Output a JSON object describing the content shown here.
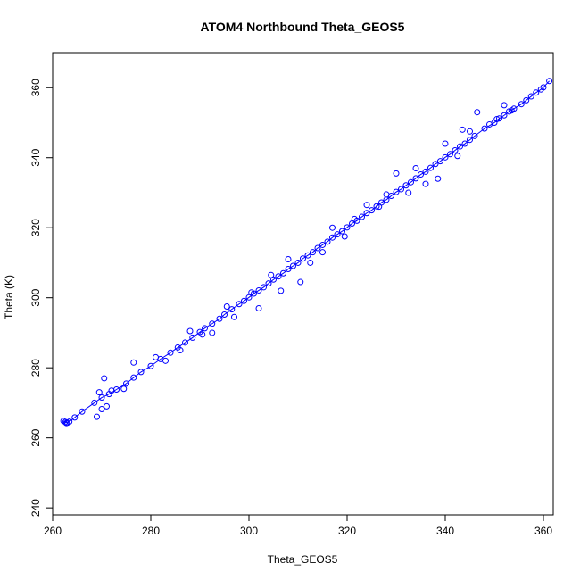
{
  "chart_data": {
    "type": "scatter",
    "title": "ATOM4 Northbound Theta_GEOS5",
    "xlabel": "Theta_GEOS5",
    "ylabel": "Theta (K)",
    "xlim": [
      260,
      362
    ],
    "ylim": [
      238,
      370
    ],
    "xticks": [
      260,
      280,
      300,
      320,
      340,
      360
    ],
    "yticks": [
      240,
      260,
      280,
      300,
      320,
      340,
      360
    ],
    "grid": false,
    "legend": "none",
    "series": [
      {
        "color": "#0000ff",
        "marker": "open-circle",
        "connected": true,
        "x": [
          262.2,
          262.6,
          263.0,
          262.8,
          263.4,
          264.5,
          266.0,
          268.5,
          270.0,
          271.5,
          273.0,
          275.0,
          276.5,
          278.0,
          280.0,
          282.0,
          284.0,
          285.5,
          287.0,
          288.5,
          290.0,
          291.0,
          292.5,
          294.0,
          295.0,
          296.5,
          298.0,
          299.0,
          300.0,
          301.0,
          302.0,
          303.0,
          304.0,
          305.0,
          306.0,
          307.0,
          308.0,
          309.0,
          310.0,
          311.0,
          312.0,
          313.0,
          314.0,
          315.0,
          316.0,
          317.0,
          318.0,
          319.0,
          320.0,
          321.0,
          322.0,
          323.0,
          324.0,
          325.0,
          326.0,
          327.0,
          328.0,
          329.0,
          330.0,
          331.0,
          332.0,
          333.0,
          334.0,
          335.0,
          336.0,
          337.0,
          338.0,
          339.0,
          340.0,
          341.0,
          342.0,
          343.0,
          344.0,
          345.0,
          346.0,
          348.0,
          350.0,
          351.0,
          352.0,
          353.0,
          354.0,
          355.5,
          356.5,
          357.5,
          358.5,
          359.5,
          360.0,
          361.2
        ],
        "y": [
          264.8,
          264.5,
          264.3,
          264.2,
          264.6,
          265.8,
          267.5,
          270.0,
          271.5,
          272.5,
          273.8,
          275.5,
          277.2,
          278.8,
          280.5,
          282.5,
          284.3,
          285.8,
          287.2,
          288.6,
          290.2,
          291.3,
          292.6,
          294.0,
          295.2,
          296.7,
          298.2,
          299.1,
          300.1,
          301.2,
          302.1,
          303.0,
          304.1,
          305.2,
          306.1,
          307.0,
          308.2,
          309.1,
          310.0,
          311.2,
          312.1,
          313.0,
          314.2,
          315.1,
          316.0,
          317.2,
          318.1,
          319.0,
          320.1,
          321.2,
          322.0,
          323.1,
          324.2,
          325.0,
          326.1,
          327.2,
          328.0,
          329.1,
          330.2,
          331.0,
          332.1,
          333.0,
          334.1,
          335.2,
          336.0,
          337.1,
          338.2,
          339.0,
          340.1,
          341.0,
          342.1,
          343.2,
          344.0,
          345.1,
          346.2,
          348.3,
          350.0,
          351.2,
          352.1,
          353.2,
          354.0,
          355.3,
          356.4,
          357.5,
          358.6,
          359.5,
          360.1,
          361.9
        ]
      },
      {
        "color": "#0000ff",
        "marker": "open-circle",
        "connected": false,
        "x": [
          269.0,
          270.0,
          269.5,
          270.5,
          271.0,
          272.0,
          274.5,
          276.5,
          281.0,
          283.0,
          286.0,
          288.0,
          290.5,
          292.5,
          295.5,
          297.0,
          300.5,
          302.0,
          304.5,
          306.5,
          308.0,
          310.5,
          312.5,
          315.0,
          317.0,
          319.5,
          321.5,
          324.0,
          326.5,
          328.0,
          330.0,
          332.5,
          334.0,
          336.0,
          338.5,
          340.0,
          342.5,
          343.5,
          345.0,
          346.5,
          349.0,
          350.5,
          352.0,
          353.5
        ],
        "y": [
          266.0,
          268.2,
          273.0,
          277.0,
          269.0,
          273.5,
          274.0,
          281.5,
          283.0,
          282.0,
          285.0,
          290.5,
          289.5,
          290.0,
          297.5,
          294.5,
          301.5,
          297.0,
          306.5,
          302.0,
          311.0,
          304.5,
          310.0,
          313.0,
          320.0,
          317.5,
          322.5,
          326.5,
          326.0,
          329.5,
          335.5,
          330.0,
          337.0,
          332.5,
          334.0,
          344.0,
          340.5,
          348.0,
          347.5,
          353.0,
          349.5,
          351.0,
          355.0,
          353.5
        ]
      }
    ]
  }
}
